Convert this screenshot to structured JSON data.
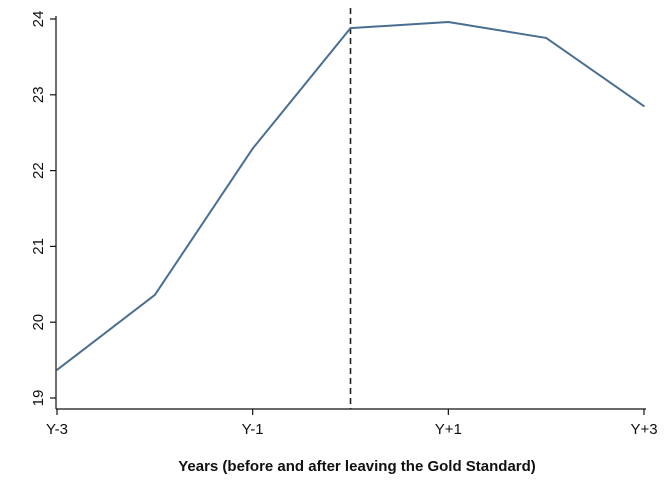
{
  "chart_data": {
    "type": "line",
    "title": "",
    "xlabel": "Years (before and after leaving the Gold Standard)",
    "ylabel": "",
    "x_positions": [
      -3,
      -2,
      -1,
      0,
      1,
      2,
      3
    ],
    "x_tick_values": [
      -3,
      -1,
      1,
      3
    ],
    "x_tick_labels": [
      "Y-3",
      "Y-1",
      "Y+1",
      "Y+3"
    ],
    "xlim": [
      -3,
      3
    ],
    "y_ticks": [
      19,
      20,
      21,
      22,
      23,
      24
    ],
    "y_tick_labels": [
      "19",
      "20",
      "21",
      "22",
      "23",
      "24"
    ],
    "ylim": [
      19,
      24
    ],
    "grid": false,
    "legend": "none",
    "reference_line": {
      "x": 0,
      "style": "dashed",
      "color": "#222222"
    },
    "series": [
      {
        "values": [
          19.37,
          20.36,
          22.29,
          23.88,
          23.96,
          23.75,
          22.85
        ],
        "color": "#4a6e92"
      }
    ]
  }
}
